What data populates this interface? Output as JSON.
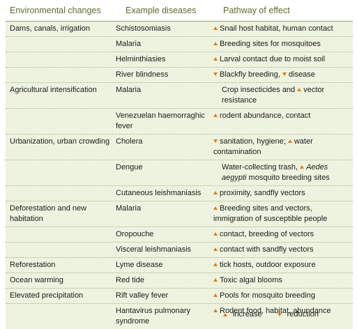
{
  "headers": [
    "Environmental changes",
    "Example diseases",
    "Pathway of effect"
  ],
  "rows": [
    {
      "change": "Dams, canals, irrigation",
      "disease": "Schistosomiasis",
      "pathway": [
        {
          "m": "up"
        },
        {
          "t": "Snail host habitat, human contact"
        }
      ]
    },
    {
      "change": "",
      "disease": "Malaria",
      "pathway": [
        {
          "m": "up"
        },
        {
          "t": "Breeding sites for mosquitoes"
        }
      ]
    },
    {
      "change": "",
      "disease": "Helminthiasies",
      "pathway": [
        {
          "m": "up"
        },
        {
          "t": "Larval contact due to moist soil"
        }
      ]
    },
    {
      "change": "",
      "disease": "River blindness",
      "pathway": [
        {
          "m": "dn"
        },
        {
          "t": "Blackfly breeding, "
        },
        {
          "m": "dn"
        },
        {
          "t": "disease"
        }
      ]
    },
    {
      "change": "Agricultural intensification",
      "disease": "Malaria",
      "pathway": [
        {
          "t": "Crop insecticides and "
        },
        {
          "m": "up"
        },
        {
          "t": "vector resistance"
        }
      ]
    },
    {
      "change": "",
      "disease": "Venezuelan haemorraghic fever",
      "pathway": [
        {
          "m": "up"
        },
        {
          "t": "rodent abundance, contact"
        }
      ]
    },
    {
      "change": "Urbanization, urban crowding",
      "disease": "Cholera",
      "pathway": [
        {
          "m": "dn"
        },
        {
          "t": "sanitation, hygiene; "
        },
        {
          "m": "up"
        },
        {
          "t": "water contamination"
        }
      ]
    },
    {
      "change": "",
      "disease": "Dengue",
      "pathway": [
        {
          "t": "Water-collecting trash, "
        },
        {
          "m": "up"
        },
        {
          "i": "Aedes aegypti"
        },
        {
          "t": " mosquito breeding sites"
        }
      ]
    },
    {
      "change": "",
      "disease": "Cutaneous leishmaniasis",
      "pathway": [
        {
          "m": "up"
        },
        {
          "t": "proximity, sandfly vectors"
        }
      ]
    },
    {
      "change": "Deforestation and new habitation",
      "disease": "Malaria",
      "pathway": [
        {
          "m": "up"
        },
        {
          "t": "Breeding sites and vectors, immigration of susceptible people"
        }
      ]
    },
    {
      "change": "",
      "disease": "Oropouche",
      "pathway": [
        {
          "m": "up"
        },
        {
          "t": "contact, breeding of vectors"
        }
      ]
    },
    {
      "change": "",
      "disease": "Visceral leishmaniasis",
      "pathway": [
        {
          "m": "up"
        },
        {
          "t": "contact with sandfly vectors"
        }
      ]
    },
    {
      "change": "Reforestation",
      "disease": "Lyme disease",
      "pathway": [
        {
          "m": "up"
        },
        {
          "t": "tick hosts, outdoor exposure"
        }
      ]
    },
    {
      "change": "Ocean warming",
      "disease": "Red tide",
      "pathway": [
        {
          "m": "up"
        },
        {
          "t": "Toxic algal blooms"
        }
      ]
    },
    {
      "change": "Elevated precipitation",
      "disease": "Rift valley fever",
      "pathway": [
        {
          "m": "up"
        },
        {
          "t": "Pools for mosquito breeding"
        }
      ]
    },
    {
      "change": "",
      "disease": "Hantavirus pulmonary syndrome",
      "pathway": [
        {
          "m": "up"
        },
        {
          "t": "Rodent food, habitat, abundance"
        }
      ]
    }
  ],
  "legend": {
    "increase": "increase",
    "reduction": "reduction"
  },
  "colors": {
    "header_text": "#5b6d2d",
    "arrow": "#e07b18",
    "table_bg": "#eef3df"
  }
}
